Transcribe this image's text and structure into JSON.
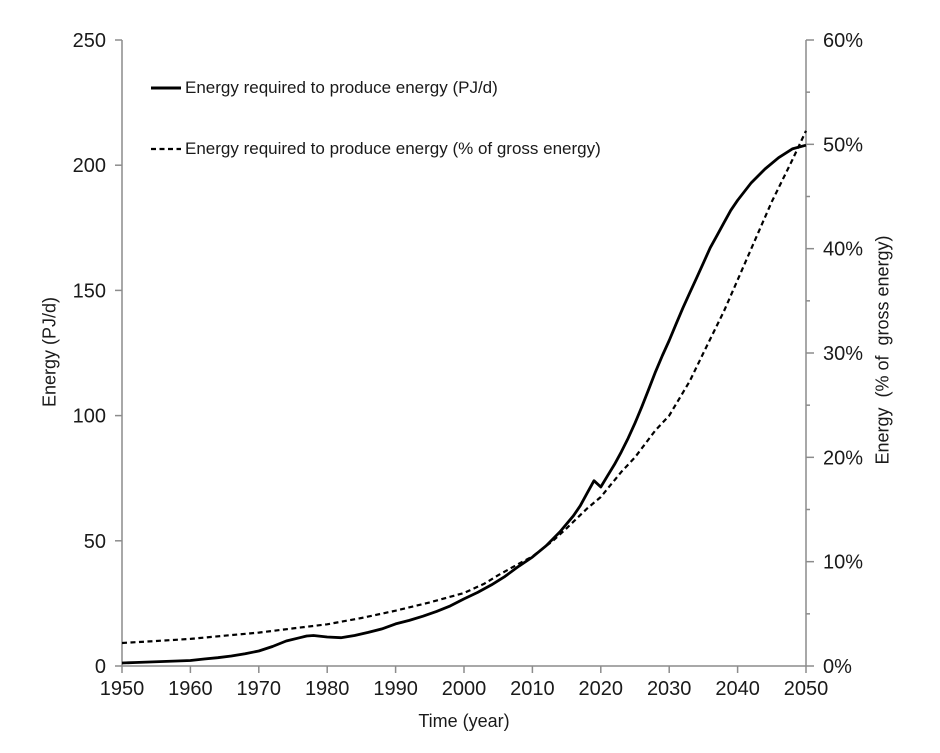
{
  "chart_data": {
    "type": "line",
    "title": "",
    "xlabel": "Time (year)",
    "ylabel_left": "Energy (PJ/d)",
    "ylabel_right": "Energy  (% of  gross energy)",
    "x_range": [
      1950,
      2050
    ],
    "x_ticks": [
      1950,
      1960,
      1970,
      1980,
      1990,
      2000,
      2010,
      2020,
      2030,
      2040,
      2050
    ],
    "y_left": {
      "range": [
        0,
        250
      ],
      "ticks": [
        0,
        50,
        100,
        150,
        200,
        250
      ]
    },
    "y_right": {
      "range": [
        0,
        60
      ],
      "major_ticks": [
        0,
        10,
        20,
        30,
        40,
        50,
        60
      ],
      "minor_ticks": [
        5,
        15,
        25,
        35,
        45,
        55
      ],
      "tick_suffix": "%"
    },
    "grid": false,
    "legend": {
      "position": "top-left-inside"
    },
    "colors": {
      "line": "#000000",
      "axis": "#8c8c8c",
      "text": "#1a1a1a",
      "background": "#ffffff"
    },
    "series": [
      {
        "name": "Energy required to produce energy (PJ/d)",
        "axis": "left",
        "style": "solid",
        "color": "#000000",
        "points": [
          [
            1950,
            1.2
          ],
          [
            1952,
            1.4
          ],
          [
            1954,
            1.6
          ],
          [
            1956,
            1.8
          ],
          [
            1958,
            2.0
          ],
          [
            1960,
            2.2
          ],
          [
            1962,
            2.8
          ],
          [
            1964,
            3.3
          ],
          [
            1966,
            4.0
          ],
          [
            1968,
            4.9
          ],
          [
            1970,
            6.0
          ],
          [
            1972,
            7.8
          ],
          [
            1974,
            10.0
          ],
          [
            1976,
            11.3
          ],
          [
            1977,
            12.0
          ],
          [
            1978,
            12.2
          ],
          [
            1980,
            11.6
          ],
          [
            1982,
            11.3
          ],
          [
            1984,
            12.2
          ],
          [
            1986,
            13.4
          ],
          [
            1988,
            14.8
          ],
          [
            1990,
            16.8
          ],
          [
            1992,
            18.2
          ],
          [
            1994,
            19.9
          ],
          [
            1996,
            21.8
          ],
          [
            1998,
            24.0
          ],
          [
            2000,
            26.8
          ],
          [
            2002,
            29.4
          ],
          [
            2004,
            32.4
          ],
          [
            2006,
            35.8
          ],
          [
            2008,
            39.8
          ],
          [
            2010,
            43.5
          ],
          [
            2012,
            48.0
          ],
          [
            2014,
            53.5
          ],
          [
            2016,
            60.0
          ],
          [
            2017,
            64.0
          ],
          [
            2018,
            69.0
          ],
          [
            2019,
            74.0
          ],
          [
            2020,
            71.5
          ],
          [
            2021,
            76.0
          ],
          [
            2022,
            80.5
          ],
          [
            2023,
            85.5
          ],
          [
            2024,
            91.0
          ],
          [
            2025,
            97.0
          ],
          [
            2026,
            103.5
          ],
          [
            2027,
            110.5
          ],
          [
            2028,
            117.5
          ],
          [
            2029,
            124.0
          ],
          [
            2030,
            130.0
          ],
          [
            2031,
            136.5
          ],
          [
            2032,
            143.0
          ],
          [
            2033,
            149.0
          ],
          [
            2034,
            155.0
          ],
          [
            2035,
            161.0
          ],
          [
            2036,
            167.0
          ],
          [
            2037,
            172.0
          ],
          [
            2038,
            177.0
          ],
          [
            2039,
            182.0
          ],
          [
            2040,
            186.0
          ],
          [
            2042,
            193.0
          ],
          [
            2044,
            198.5
          ],
          [
            2046,
            203.0
          ],
          [
            2048,
            206.5
          ],
          [
            2050,
            208.0
          ]
        ]
      },
      {
        "name": "Energy required to produce energy (% of gross energy)",
        "axis": "right",
        "style": "dashed",
        "color": "#000000",
        "points": [
          [
            1950,
            2.2
          ],
          [
            1955,
            2.4
          ],
          [
            1960,
            2.6
          ],
          [
            1965,
            2.9
          ],
          [
            1970,
            3.2
          ],
          [
            1975,
            3.6
          ],
          [
            1980,
            4.0
          ],
          [
            1985,
            4.6
          ],
          [
            1990,
            5.3
          ],
          [
            1995,
            6.1
          ],
          [
            2000,
            7.0
          ],
          [
            2003,
            7.9
          ],
          [
            2005,
            8.7
          ],
          [
            2008,
            9.8
          ],
          [
            2010,
            10.5
          ],
          [
            2013,
            12.0
          ],
          [
            2015,
            13.2
          ],
          [
            2018,
            15.1
          ],
          [
            2020,
            16.2
          ],
          [
            2023,
            18.6
          ],
          [
            2025,
            20.0
          ],
          [
            2028,
            22.6
          ],
          [
            2030,
            24.0
          ],
          [
            2033,
            27.3
          ],
          [
            2035,
            30.0
          ],
          [
            2038,
            34.0
          ],
          [
            2040,
            37.0
          ],
          [
            2043,
            41.5
          ],
          [
            2045,
            44.5
          ],
          [
            2048,
            48.5
          ],
          [
            2050,
            51.3
          ]
        ]
      }
    ]
  }
}
